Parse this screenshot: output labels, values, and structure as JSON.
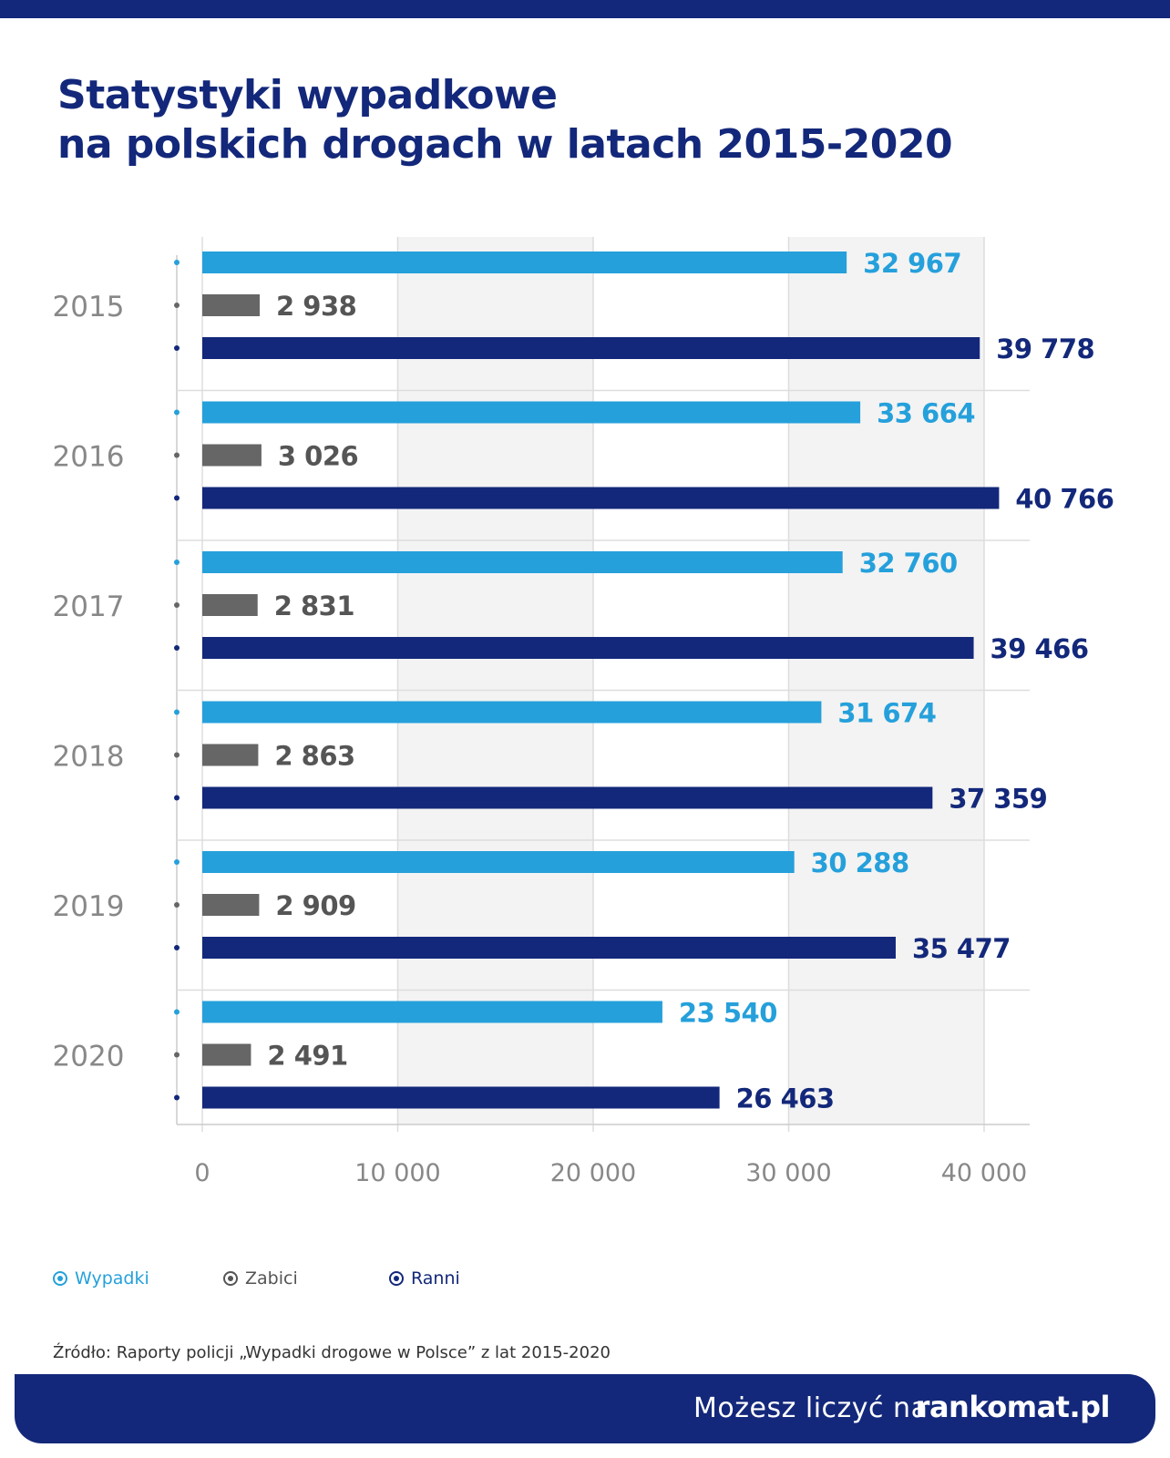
{
  "header": {
    "title_line1": "Statystyki wypadkowe",
    "title_line2": "na polskich drogach w latach 2015-2020"
  },
  "chart_data": {
    "type": "bar",
    "orientation": "horizontal",
    "categories": [
      "2015",
      "2016",
      "2017",
      "2018",
      "2019",
      "2020"
    ],
    "series": [
      {
        "name": "Wypadki",
        "color": "#25a0db",
        "values": [
          32967,
          33664,
          32760,
          31674,
          30288,
          23540
        ],
        "labels": [
          "32 967",
          "33 664",
          "32 760",
          "31 674",
          "30 288",
          "23 540"
        ]
      },
      {
        "name": "Zabici",
        "color": "#666666",
        "values": [
          2938,
          3026,
          2831,
          2863,
          2909,
          2491
        ],
        "labels": [
          "2 938",
          "3 026",
          "2 831",
          "2 863",
          "2 909",
          "2 491"
        ]
      },
      {
        "name": "Ranni",
        "color": "#13287a",
        "values": [
          39778,
          40766,
          39466,
          37359,
          35477,
          26463
        ],
        "labels": [
          "39 778",
          "40 766",
          "39 466",
          "37 359",
          "35 477",
          "26 463"
        ]
      }
    ],
    "xlim": [
      0,
      40000
    ],
    "xticks": [
      0,
      10000,
      20000,
      30000,
      40000
    ],
    "xtick_labels": [
      "0",
      "10 000",
      "20 000",
      "30 000",
      "40 000"
    ],
    "grid": true,
    "legend_position": "bottom-left"
  },
  "source": "Źródło: Raporty policji „Wypadki drogowe w Polsce” z lat 2015-2020",
  "footer": {
    "tagline": "Możesz liczyć na",
    "brand": "rankomat.pl"
  }
}
